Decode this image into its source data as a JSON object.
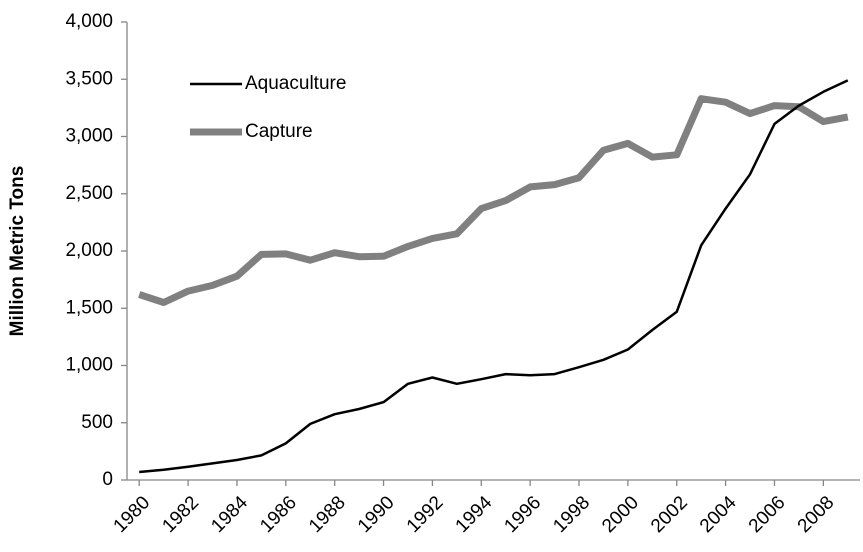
{
  "chart_data": {
    "type": "line",
    "y_label": "Million Metric Tons",
    "x": [
      1980,
      1981,
      1982,
      1983,
      1984,
      1985,
      1986,
      1987,
      1988,
      1989,
      1990,
      1991,
      1992,
      1993,
      1994,
      1995,
      1996,
      1997,
      1998,
      1999,
      2000,
      2001,
      2002,
      2003,
      2004,
      2005,
      2006,
      2007,
      2008,
      2009
    ],
    "xlim": [
      1979.5,
      2009.5
    ],
    "xticks": [
      1980,
      1982,
      1984,
      1986,
      1988,
      1990,
      1992,
      1994,
      1996,
      1998,
      2000,
      2002,
      2004,
      2006,
      2008
    ],
    "ylim": [
      0,
      4000
    ],
    "yticks": [
      0,
      500,
      {
        "value": 1000,
        "label": "1,000"
      },
      {
        "value": 1500,
        "label": "1,500"
      },
      {
        "value": 2000,
        "label": "2,000"
      },
      {
        "value": 2500,
        "label": "2,500"
      },
      {
        "value": 3000,
        "label": "3,000"
      },
      {
        "value": 3500,
        "label": "3,500"
      },
      {
        "value": 4000,
        "label": "4,000"
      }
    ],
    "grid": false,
    "legend": "top-left",
    "series": [
      {
        "name": "Aquaculture",
        "color": "#000000",
        "values": [
          70,
          90,
          115,
          145,
          175,
          215,
          320,
          490,
          575,
          620,
          680,
          840,
          895,
          840,
          880,
          925,
          915,
          925,
          985,
          1050,
          1140,
          1310,
          1470,
          2050,
          2370,
          2670,
          3110,
          3270,
          3390,
          3490
        ]
      },
      {
        "name": "Capture",
        "color": "#808080",
        "values": [
          1620,
          1550,
          1650,
          1700,
          1780,
          1970,
          1975,
          1920,
          1985,
          1950,
          1955,
          2040,
          2110,
          2150,
          2370,
          2440,
          2560,
          2580,
          2640,
          2880,
          2940,
          2820,
          2840,
          3330,
          3300,
          3200,
          3270,
          3260,
          3130,
          3170
        ]
      }
    ]
  }
}
